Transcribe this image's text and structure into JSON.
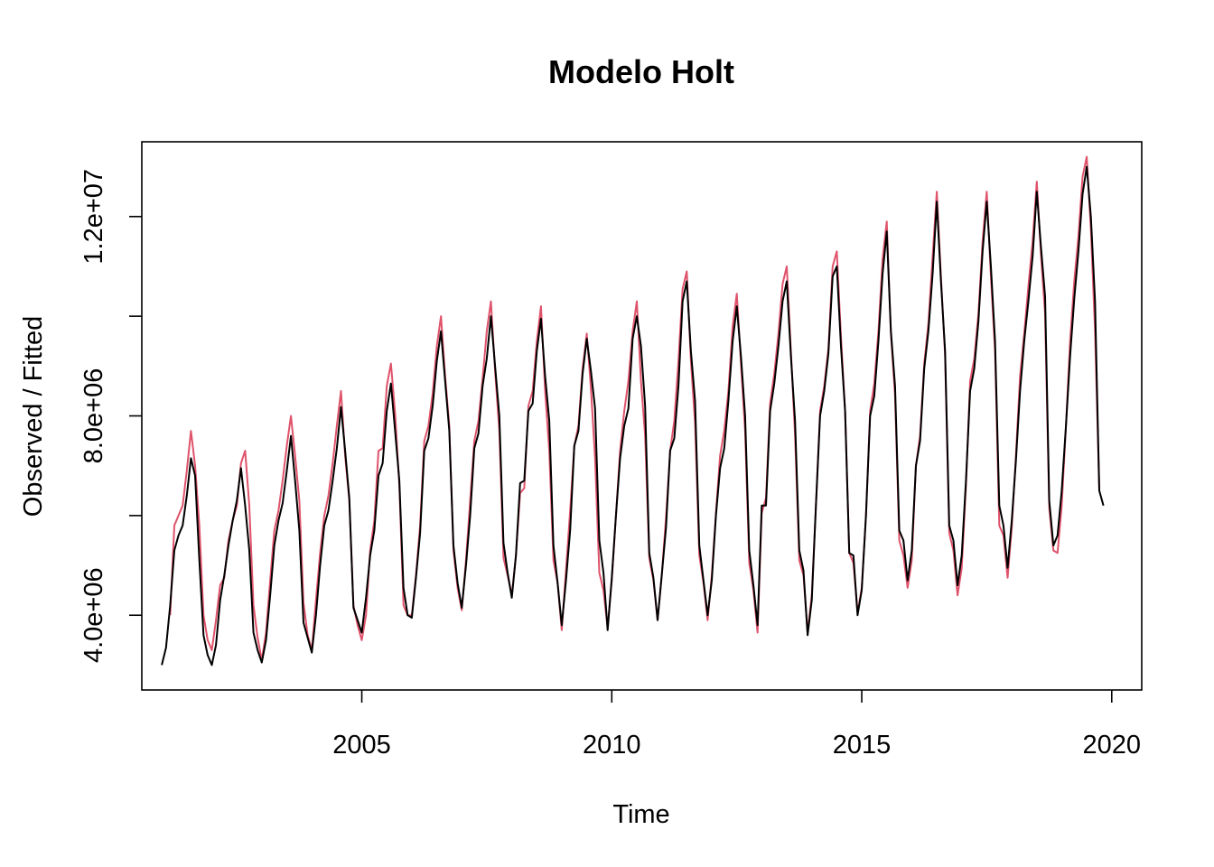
{
  "chart_data": {
    "type": "line",
    "title": "Modelo Holt",
    "xlabel": "Time",
    "ylabel": "Observed / Fitted",
    "xlim": [
      2001.0,
      2020.0
    ],
    "ylim": [
      3000000,
      13500000
    ],
    "grid": false,
    "x_ticks": [
      2005,
      2010,
      2015,
      2020
    ],
    "x_tick_labels": [
      "2005",
      "2010",
      "2015",
      "2020"
    ],
    "y_ticks": [
      4000000,
      6000000,
      8000000,
      10000000,
      12000000
    ],
    "y_tick_labels": [
      "4.0e+06",
      "",
      "8.0e+06",
      "",
      "1.2e+07"
    ],
    "frequency": 12,
    "start": 2001.0,
    "series": [
      {
        "color": "#000000",
        "start": 2001.0,
        "values": [
          3000000,
          3350000,
          4200000,
          5300000,
          5600000,
          5800000,
          6400000,
          7150000,
          6800000,
          5100000,
          3600000,
          3200000,
          3000000,
          3400000,
          4300000,
          4800000,
          5400000,
          5900000,
          6300000,
          6950000,
          6200000,
          5300000,
          3650000,
          3300000,
          3050000,
          3500000,
          4400000,
          5400000,
          5900000,
          6250000,
          6900000,
          7600000,
          6700000,
          5700000,
          3850000,
          3550000,
          3250000,
          4000000,
          5000000,
          5800000,
          6100000,
          6700000,
          7350000,
          8180000,
          7300000,
          6350000,
          4150000,
          3900000,
          3650000,
          4350000,
          5200000,
          5700000,
          6800000,
          7050000,
          8100000,
          8650000,
          7700000,
          6700000,
          4550000,
          4000000,
          3950000,
          4750000,
          5650000,
          7300000,
          7550000,
          8200000,
          9100000,
          9700000,
          8700000,
          7700000,
          5400000,
          4650000,
          4150000,
          5000000,
          6000000,
          7350000,
          7650000,
          8600000,
          9150000,
          10000000,
          9000000,
          8000000,
          5450000,
          4850000,
          4350000,
          5200000,
          6650000,
          6700000,
          8100000,
          8250000,
          9300000,
          9950000,
          8800000,
          7900000,
          5400000,
          4650000,
          3800000,
          4700000,
          5700000,
          7400000,
          7700000,
          8850000,
          9550000,
          8900000,
          8150000,
          5500000,
          4850000,
          3700000,
          4750000,
          6000000,
          7150000,
          7800000,
          8150000,
          9550000,
          10000000,
          9400000,
          8200000,
          5250000,
          4750000,
          3900000,
          4800000,
          5750000,
          7300000,
          7550000,
          8600000,
          10300000,
          10700000,
          9300000,
          8300000,
          5400000,
          4700000,
          4000000,
          4700000,
          6000000,
          6950000,
          7350000,
          8300000,
          9500000,
          10200000,
          9200000,
          8000000,
          5300000,
          4600000,
          3800000,
          6200000,
          6200000,
          8100000,
          8650000,
          9400000,
          10300000,
          10700000,
          9200000,
          7900000,
          5300000,
          4900000,
          3600000,
          4300000,
          6200000,
          8000000,
          8500000,
          9250000,
          10800000,
          11000000,
          9400000,
          8100000,
          5250000,
          5200000,
          4000000,
          4500000,
          6000000,
          8000000,
          8400000,
          9500000,
          10850000,
          11700000,
          9700000,
          8600000,
          5700000,
          5500000,
          4700000,
          5300000,
          7000000,
          7500000,
          8950000,
          9700000,
          10850000,
          12300000,
          10700000,
          9300000,
          5800000,
          5500000,
          4600000,
          5200000,
          6700000,
          8500000,
          8950000,
          9900000,
          11300000,
          12300000,
          11000000,
          9500000,
          6200000,
          5800000,
          4950000,
          5900000,
          7100000,
          8500000,
          9500000,
          10300000,
          11200000,
          12500000,
          11400000,
          10400000,
          6300000,
          5400000,
          5600000,
          6500000,
          7800000,
          9200000,
          10350000,
          11300000,
          12450000,
          13000000,
          12000000,
          10300000,
          6500000,
          6200000
        ]
      },
      {
        "color": "#df536b",
        "start": 2001.1667,
        "values": [
          4000000,
          5800000,
          6000000,
          6200000,
          6900000,
          7700000,
          7000000,
          5800000,
          4000000,
          3500000,
          3300000,
          3900000,
          4600000,
          4750000,
          5500000,
          5900000,
          6200000,
          7050000,
          7300000,
          6200000,
          4200000,
          3550000,
          3100000,
          3650000,
          4700000,
          5700000,
          6100000,
          6700000,
          7400000,
          8000000,
          7200000,
          6300000,
          4250000,
          3600000,
          3300000,
          4300000,
          5250000,
          6000000,
          6400000,
          7050000,
          7800000,
          8500000,
          7200000,
          6300000,
          4200000,
          3800000,
          3500000,
          4000000,
          5300000,
          5900000,
          7300000,
          7350000,
          8600000,
          9050000,
          8050000,
          6600000,
          4200000,
          4000000,
          4000000,
          4800000,
          5800000,
          7500000,
          7800000,
          8450000,
          9400000,
          10000000,
          8800000,
          7800000,
          5300000,
          4550000,
          4100000,
          5100000,
          6300000,
          7500000,
          7900000,
          8750000,
          9700000,
          10300000,
          8900000,
          7700000,
          5150000,
          4800000,
          4400000,
          5200000,
          6450000,
          6550000,
          8200000,
          8500000,
          9500000,
          10200000,
          8500000,
          7300000,
          5100000,
          4650000,
          3700000,
          4900000,
          6100000,
          7400000,
          7800000,
          8950000,
          9650000,
          8550000,
          7150000,
          4850000,
          4500000,
          3750000,
          4700000,
          6000000,
          7300000,
          8100000,
          8700000,
          9700000,
          10300000,
          8700000,
          7600000,
          5150000,
          4700000,
          3900000,
          4800000,
          5950000,
          7300000,
          7900000,
          9100000,
          10550000,
          10900000,
          9100000,
          7850000,
          5200000,
          4650000,
          3900000,
          4800000,
          6050000,
          7200000,
          7700000,
          8500000,
          9800000,
          10450000,
          9050000,
          7700000,
          5050000,
          4500000,
          3650000,
          6050000,
          6350000,
          8250000,
          8850000,
          9650000,
          10650000,
          11000000,
          9300000,
          7600000,
          5100000,
          4800000,
          3650000,
          4400000,
          6200000,
          8100000,
          8600000,
          9350000,
          11000000,
          11300000,
          9600000,
          8100000,
          5250000,
          5050000,
          4050000,
          4550000,
          6000000,
          8100000,
          8650000,
          9700000,
          11150000,
          11900000,
          9650000,
          8400000,
          5500000,
          5200000,
          4550000,
          5100000,
          7000000,
          7600000,
          9050000,
          9850000,
          11200000,
          12500000,
          10800000,
          9200000,
          5650000,
          5300000,
          4400000,
          4950000,
          6600000,
          8700000,
          9150000,
          10050000,
          11500000,
          12500000,
          10800000,
          9300000,
          5800000,
          5600000,
          4750000,
          5750000,
          7200000,
          8800000,
          9650000,
          10600000,
          11500000,
          12700000,
          11250000,
          10050000,
          6150000,
          5300000,
          5250000,
          6200000,
          7800000,
          9500000,
          10700000,
          11600000,
          12800000,
          13200000,
          11750000,
          9700000,
          6500000
        ]
      }
    ]
  }
}
